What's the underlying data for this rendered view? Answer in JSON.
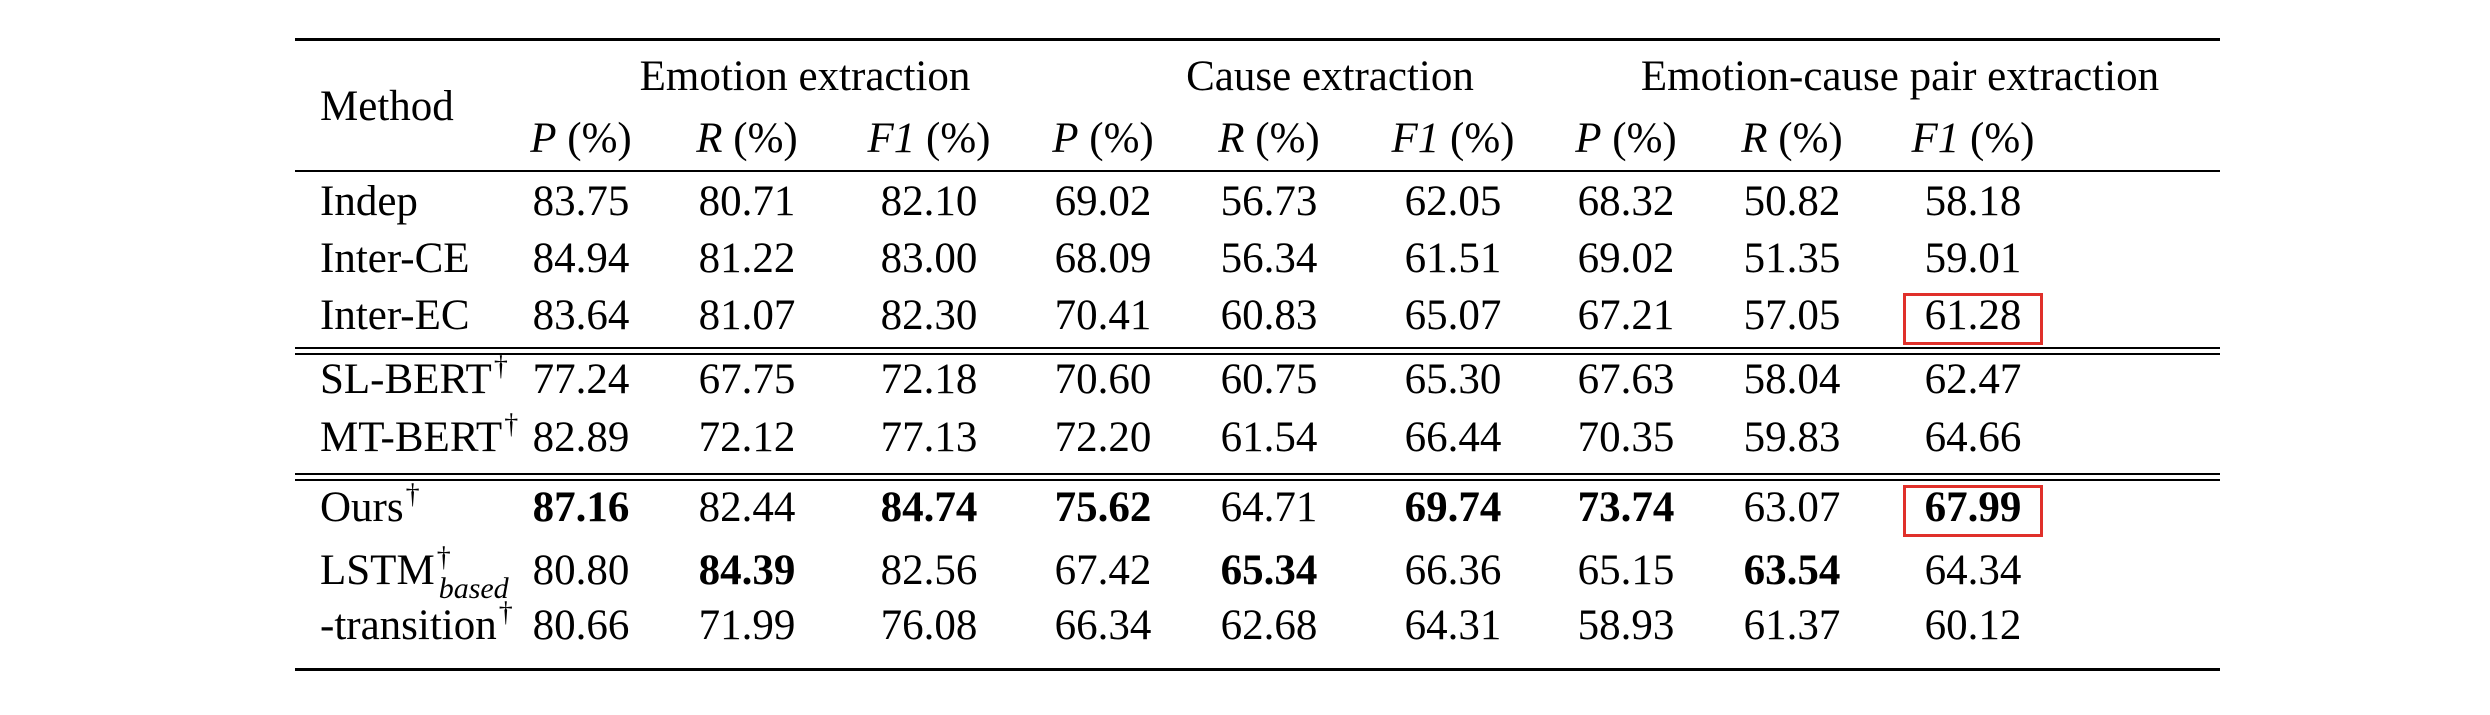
{
  "headers": {
    "method": "Method",
    "groups": [
      "Emotion extraction",
      "Cause extraction",
      "Emotion-cause pair extraction"
    ],
    "metric_letters": [
      "P",
      "R",
      "F1",
      "P",
      "R",
      "F1",
      "P",
      "R",
      "F1"
    ],
    "metric_unit": " (%)"
  },
  "rows": [
    {
      "name": "Indep",
      "sup": "",
      "sub": "",
      "values": [
        "83.75",
        "80.71",
        "82.10",
        "69.02",
        "56.73",
        "62.05",
        "68.32",
        "50.82",
        "58.18"
      ],
      "bold": []
    },
    {
      "name": "Inter-CE",
      "sup": "",
      "sub": "",
      "values": [
        "84.94",
        "81.22",
        "83.00",
        "68.09",
        "56.34",
        "61.51",
        "69.02",
        "51.35",
        "59.01"
      ],
      "bold": []
    },
    {
      "name": "Inter-EC",
      "sup": "",
      "sub": "",
      "values": [
        "83.64",
        "81.07",
        "82.30",
        "70.41",
        "60.83",
        "65.07",
        "67.21",
        "57.05",
        "61.28"
      ],
      "bold": []
    },
    {
      "name": "SL-BERT",
      "sup": "†",
      "sub": "",
      "values": [
        "77.24",
        "67.75",
        "72.18",
        "70.60",
        "60.75",
        "65.30",
        "67.63",
        "58.04",
        "62.47"
      ],
      "bold": []
    },
    {
      "name": "MT-BERT",
      "sup": "†",
      "sub": "",
      "values": [
        "82.89",
        "72.12",
        "77.13",
        "72.20",
        "61.54",
        "66.44",
        "70.35",
        "59.83",
        "64.66"
      ],
      "bold": []
    },
    {
      "name": "Ours",
      "sup": "†",
      "sub": "",
      "values": [
        "87.16",
        "82.44",
        "84.74",
        "75.62",
        "64.71",
        "69.74",
        "73.74",
        "63.07",
        "67.99"
      ],
      "bold": [
        0,
        2,
        3,
        5,
        6,
        8
      ]
    },
    {
      "name": "LSTM",
      "sup": "†",
      "sub": "based",
      "values": [
        "80.80",
        "84.39",
        "82.56",
        "67.42",
        "65.34",
        "66.36",
        "65.15",
        "63.54",
        "64.34"
      ],
      "bold": [
        1,
        4,
        7
      ]
    },
    {
      "name": "-transition",
      "sup": "†",
      "sub": "",
      "values": [
        "80.66",
        "71.99",
        "76.08",
        "66.34",
        "62.68",
        "64.31",
        "58.93",
        "61.37",
        "60.12"
      ],
      "bold": []
    }
  ],
  "highlights": [
    {
      "row": 2,
      "col": 8,
      "color": "#e0302a"
    },
    {
      "row": 5,
      "col": 8,
      "color": "#e0302a"
    }
  ]
}
